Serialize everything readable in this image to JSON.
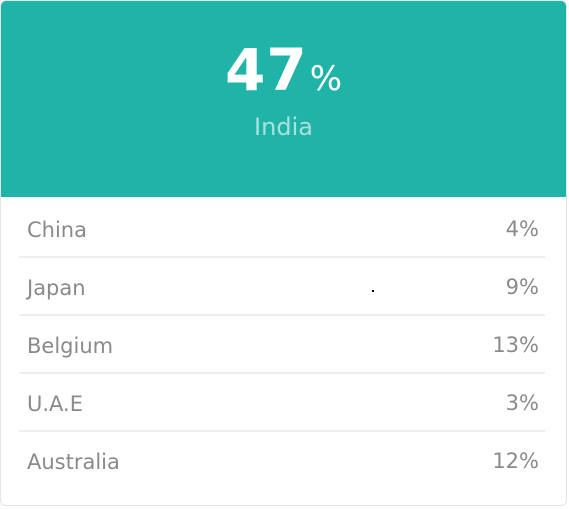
{
  "hero": {
    "value": "47",
    "unit": "%",
    "country": "India"
  },
  "rows": [
    {
      "country": "China",
      "value": "4%"
    },
    {
      "country": "Japan",
      "value": "9%"
    },
    {
      "country": "Belgium",
      "value": "13%"
    },
    {
      "country": "U.A.E",
      "value": "3%"
    },
    {
      "country": "Australia",
      "value": "12%"
    }
  ],
  "colors": {
    "hero_bg": "#20b4a8",
    "hero_label": "#a9e1dc",
    "row_text": "#8a8a8a"
  }
}
